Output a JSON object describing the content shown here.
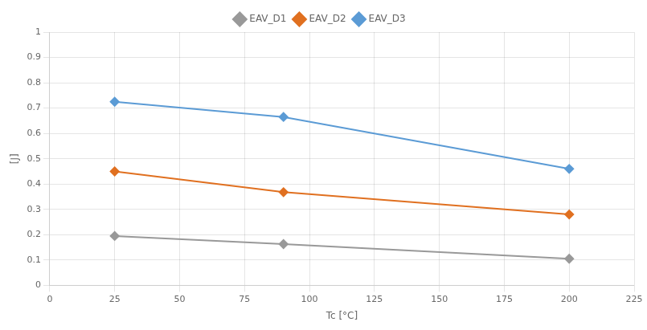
{
  "chart_data": {
    "type": "line",
    "x_label": "Tc [°C]",
    "y_label": "[J]",
    "x": [
      25,
      90,
      200
    ],
    "series": [
      {
        "name": "EAV_D1",
        "color": "#999999",
        "marker": "diamond",
        "values": [
          0.195,
          0.163,
          0.105
        ]
      },
      {
        "name": "EAV_D2",
        "color": "#E07020",
        "marker": "diamond",
        "values": [
          0.45,
          0.368,
          0.28
        ]
      },
      {
        "name": "EAV_D3",
        "color": "#5B9BD5",
        "marker": "diamond",
        "values": [
          0.725,
          0.665,
          0.46
        ]
      }
    ],
    "xlim": [
      0,
      225
    ],
    "xticks": [
      0,
      25,
      50,
      75,
      100,
      125,
      150,
      175,
      200,
      225
    ],
    "ylim": [
      0,
      1
    ],
    "yticks": [
      0,
      0.1,
      0.2,
      0.3,
      0.4,
      0.5,
      0.6,
      0.7,
      0.8,
      0.9,
      1
    ],
    "grid": true,
    "legend": "top"
  }
}
